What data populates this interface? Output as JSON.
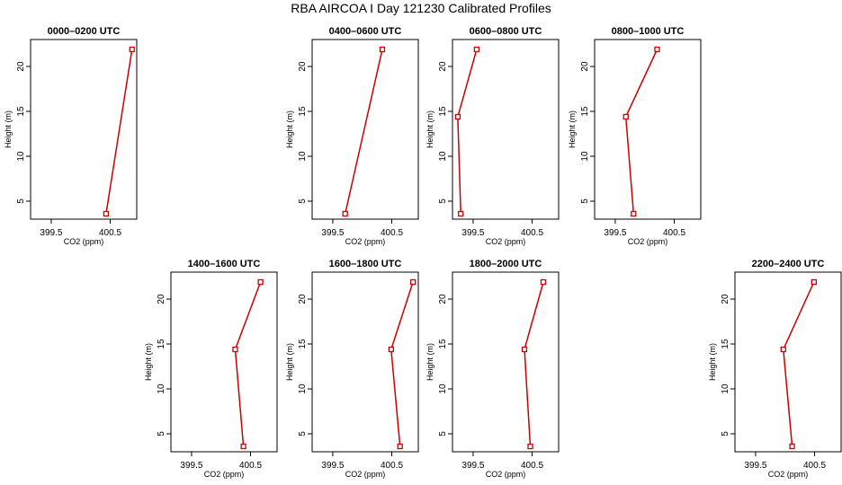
{
  "title": "RBA AIRCOA I  Day 121230  Calibrated Profiles",
  "colors": {
    "series": "#cc0000",
    "axis": "#000000"
  },
  "chart_data": [
    {
      "type": "line",
      "title": "0000–0200 UTC",
      "xlabel": "CO2 (ppm)",
      "ylabel": "Height (m)",
      "xlim": [
        399.15,
        400.95
      ],
      "ylim": [
        3,
        23
      ],
      "xticks": [
        399.5,
        400.5
      ],
      "yticks": [
        5,
        10,
        15,
        20
      ],
      "x": [
        400.43,
        400.87
      ],
      "y": [
        3.6,
        21.9
      ]
    },
    {
      "type": "line",
      "title": "0400–0600 UTC",
      "xlabel": "CO2 (ppm)",
      "ylabel": "Height (m)",
      "xlim": [
        399.15,
        400.95
      ],
      "ylim": [
        3,
        23
      ],
      "xticks": [
        399.5,
        400.5
      ],
      "yticks": [
        5,
        10,
        15,
        20
      ],
      "x": [
        399.71,
        400.34
      ],
      "y": [
        3.6,
        21.9
      ]
    },
    {
      "type": "line",
      "title": "0600–0800 UTC",
      "xlabel": "CO2 (ppm)",
      "ylabel": "Height (m)",
      "xlim": [
        399.15,
        400.95
      ],
      "ylim": [
        3,
        23
      ],
      "xticks": [
        399.5,
        400.5
      ],
      "yticks": [
        5,
        10,
        15,
        20
      ],
      "x": [
        399.29,
        399.24,
        399.56
      ],
      "y": [
        3.6,
        14.4,
        21.9
      ]
    },
    {
      "type": "line",
      "title": "0800–1000 UTC",
      "xlabel": "CO2 (ppm)",
      "ylabel": "Height (m)",
      "xlim": [
        399.15,
        400.95
      ],
      "ylim": [
        3,
        23
      ],
      "xticks": [
        399.5,
        400.5
      ],
      "yticks": [
        5,
        10,
        15,
        20
      ],
      "x": [
        399.81,
        399.68,
        400.21
      ],
      "y": [
        3.6,
        14.4,
        21.9
      ]
    },
    {
      "type": "line",
      "title": "1400–1600 UTC",
      "xlabel": "CO2 (ppm)",
      "ylabel": "Height (m)",
      "xlim": [
        399.15,
        400.95
      ],
      "ylim": [
        3,
        23
      ],
      "xticks": [
        399.5,
        400.5
      ],
      "yticks": [
        5,
        10,
        15,
        20
      ],
      "x": [
        400.38,
        400.24,
        400.67
      ],
      "y": [
        3.6,
        14.4,
        21.9
      ]
    },
    {
      "type": "line",
      "title": "1600–1800 UTC",
      "xlabel": "CO2 (ppm)",
      "ylabel": "Height (m)",
      "xlim": [
        399.15,
        400.95
      ],
      "ylim": [
        3,
        23
      ],
      "xticks": [
        399.5,
        400.5
      ],
      "yticks": [
        5,
        10,
        15,
        20
      ],
      "x": [
        400.64,
        400.49,
        400.86
      ],
      "y": [
        3.6,
        14.4,
        21.9
      ]
    },
    {
      "type": "line",
      "title": "1800–2000 UTC",
      "xlabel": "CO2 (ppm)",
      "ylabel": "Height (m)",
      "xlim": [
        399.15,
        400.95
      ],
      "ylim": [
        3,
        23
      ],
      "xticks": [
        399.5,
        400.5
      ],
      "yticks": [
        5,
        10,
        15,
        20
      ],
      "x": [
        400.47,
        400.37,
        400.69
      ],
      "y": [
        3.6,
        14.4,
        21.9
      ]
    },
    {
      "type": "line",
      "title": "2200–2400 UTC",
      "xlabel": "CO2 (ppm)",
      "ylabel": "Height (m)",
      "xlim": [
        399.15,
        400.95
      ],
      "ylim": [
        3,
        23
      ],
      "xticks": [
        399.5,
        400.5
      ],
      "yticks": [
        5,
        10,
        15,
        20
      ],
      "x": [
        400.12,
        399.97,
        400.49
      ],
      "y": [
        3.6,
        14.4,
        21.9
      ]
    }
  ]
}
